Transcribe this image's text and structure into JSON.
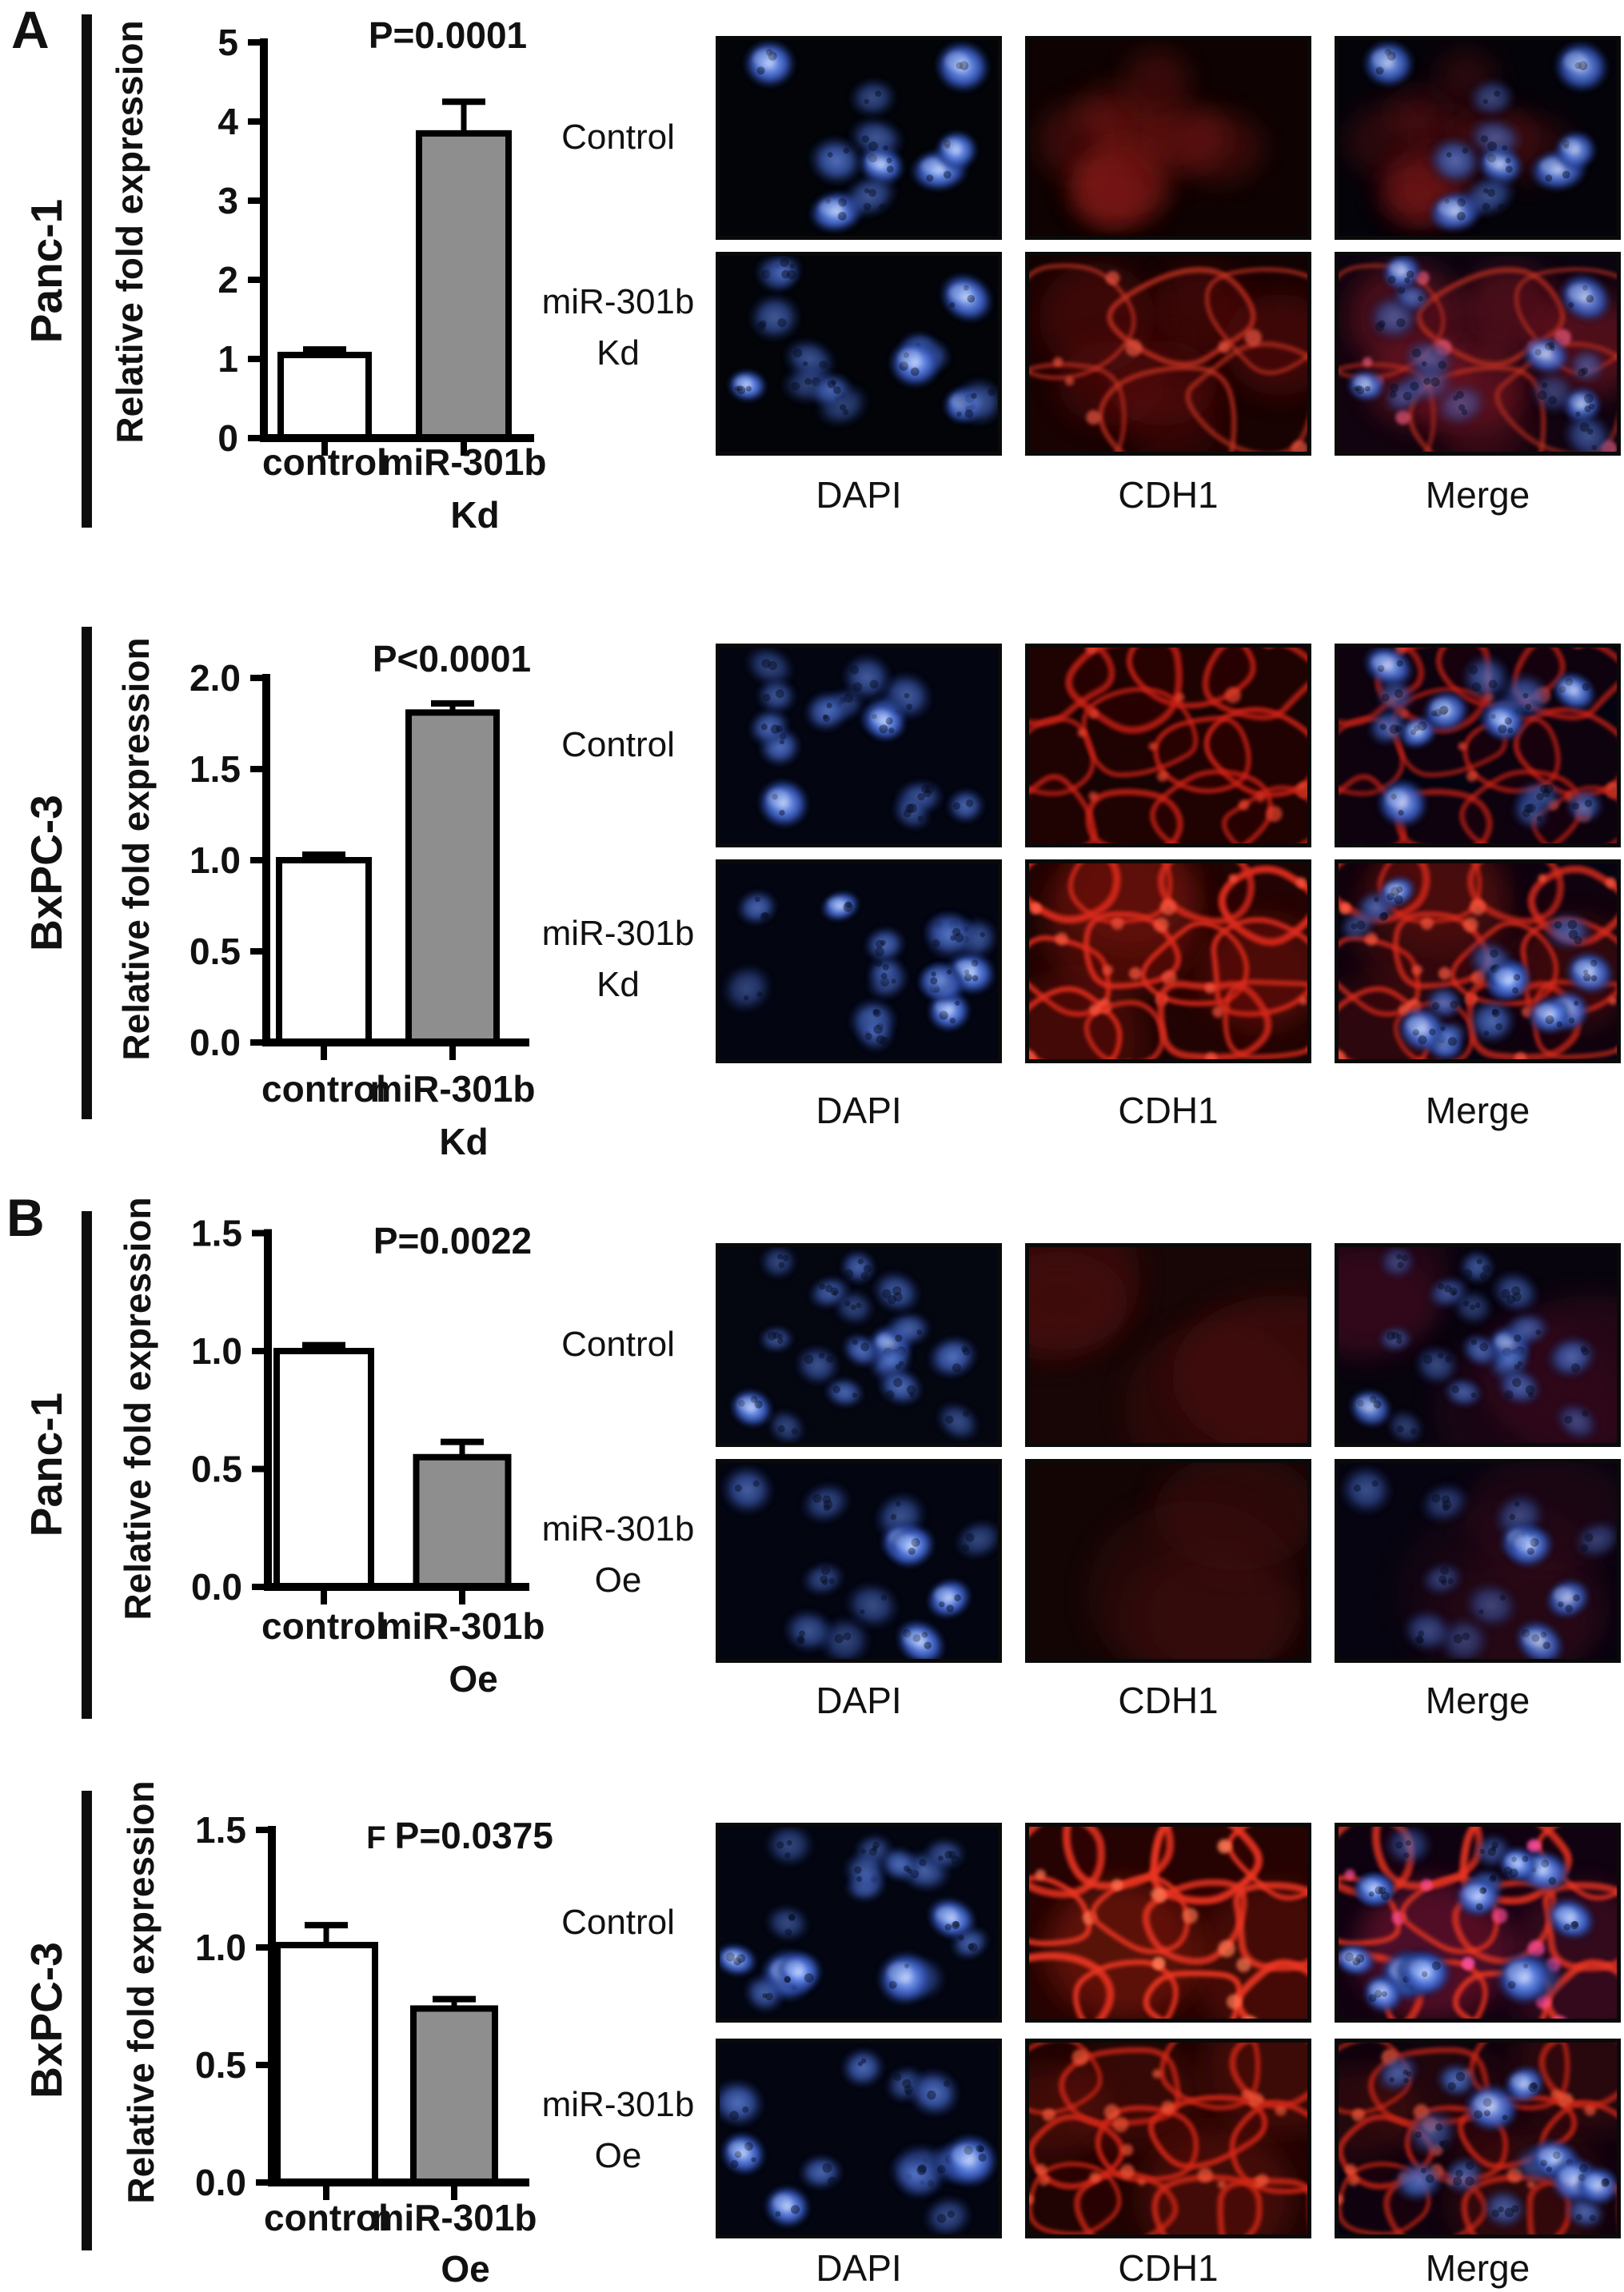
{
  "colors": {
    "bar_control_fill": "#ffffff",
    "bar_treated_fill": "#8e8e8e",
    "bar_stroke": "#000000",
    "annotation_bar": "#0d0d0d",
    "dapi_nuclei_blue": "#3f6ad8",
    "cdh1_red": "#d0261a"
  },
  "chart_data": [
    {
      "type": "bar",
      "panel": "A",
      "cell_line": "Panc-1",
      "p_prefix": "",
      "p_value": "P=0.0001",
      "ylabel": "Relative fold expression",
      "categories": [
        "control",
        "miR-301b Kd"
      ],
      "category_label_lines": [
        [
          "control"
        ],
        [
          "miR-301b",
          "Kd"
        ]
      ],
      "values": [
        1.05,
        3.85
      ],
      "errors_up": [
        0.07,
        0.4
      ],
      "ylim": [
        0,
        5
      ],
      "ytick_labels": [
        "5",
        "4",
        "3",
        "2",
        "1",
        "0"
      ],
      "grid": false,
      "legend": null,
      "bar_fills": [
        "#ffffff",
        "#8e8e8e"
      ]
    },
    {
      "type": "bar",
      "panel": "A",
      "cell_line": "BxPC-3",
      "p_prefix": "",
      "p_value": "P<0.0001",
      "ylabel": "Relative fold expression",
      "categories": [
        "control",
        "miR-301b Kd"
      ],
      "category_label_lines": [
        [
          "control"
        ],
        [
          "miR-301b",
          "Kd"
        ]
      ],
      "values": [
        1.0,
        1.81
      ],
      "errors_up": [
        0.03,
        0.05
      ],
      "ylim": [
        0,
        2
      ],
      "ytick_labels": [
        "2.0",
        "1.5",
        "1.0",
        "0.5",
        "0.0"
      ],
      "grid": false,
      "legend": null,
      "bar_fills": [
        "#ffffff",
        "#8e8e8e"
      ]
    },
    {
      "type": "bar",
      "panel": "B",
      "cell_line": "Panc-1",
      "p_prefix": "",
      "p_value": "P=0.0022",
      "ylabel": "Relative fold expression",
      "categories": [
        "control",
        "miR-301b Oe"
      ],
      "category_label_lines": [
        [
          "control"
        ],
        [
          "miR-301b",
          "Oe"
        ]
      ],
      "values": [
        1.0,
        0.55
      ],
      "errors_up": [
        0.025,
        0.065
      ],
      "ylim": [
        0,
        1.5
      ],
      "ytick_labels": [
        "1.5",
        "1.0",
        "0.5",
        "0.0"
      ],
      "grid": false,
      "legend": null,
      "bar_fills": [
        "#ffffff",
        "#8e8e8e"
      ]
    },
    {
      "type": "bar",
      "panel": "B",
      "cell_line": "BxPC-3",
      "p_prefix": "F",
      "p_value": "P=0.0375",
      "ylabel": "Relative fold expression",
      "categories": [
        "control",
        "miR-301b Oe"
      ],
      "category_label_lines": [
        [
          "control"
        ],
        [
          "miR-301b",
          "Oe"
        ]
      ],
      "values": [
        1.01,
        0.74
      ],
      "errors_up": [
        0.085,
        0.04
      ],
      "ylim": [
        0,
        1.5
      ],
      "ytick_labels": [
        "1.5",
        "1.0",
        "0.5",
        "0.0"
      ],
      "grid": false,
      "legend": null,
      "bar_fills": [
        "#ffffff",
        "#8e8e8e"
      ]
    }
  ],
  "sections": [
    {
      "panel_letter": "A",
      "cell_line": "Panc-1",
      "chart_index": 0,
      "microscopy": {
        "col_labels": [
          "DAPI",
          "CDH1",
          "Merge"
        ],
        "rows": [
          {
            "label_lines": [
              "Control",
              ""
            ],
            "cells": [
              "dapi-bright-cluster",
              "cdh1-faint-cluster",
              "merge-faint-cluster"
            ]
          },
          {
            "label_lines": [
              "miR-301b",
              "Kd"
            ],
            "cells": [
              "dapi-scatter",
              "cdh1-web",
              "merge-web"
            ]
          }
        ]
      }
    },
    {
      "panel_letter": "",
      "cell_line": "BxPC-3",
      "chart_index": 1,
      "microscopy": {
        "col_labels": [
          "DAPI",
          "CDH1",
          "Merge"
        ],
        "rows": [
          {
            "label_lines": [
              "Control",
              ""
            ],
            "cells": [
              "dapi-round-dim",
              "cdh1-mesh",
              "merge-mesh"
            ]
          },
          {
            "label_lines": [
              "miR-301b",
              "Kd"
            ],
            "cells": [
              "dapi-round-dim2",
              "cdh1-mesh-strong",
              "merge-mesh-strong"
            ]
          }
        ]
      }
    },
    {
      "panel_letter": "B",
      "cell_line": "Panc-1",
      "chart_index": 2,
      "microscopy": {
        "col_labels": [
          "DAPI",
          "CDH1",
          "Merge"
        ],
        "rows": [
          {
            "label_lines": [
              "Control",
              ""
            ],
            "cells": [
              "dapi-many-dim",
              "cdh1-dark",
              "merge-dark"
            ]
          },
          {
            "label_lines": [
              "miR-301b",
              "Oe"
            ],
            "cells": [
              "dapi-few-dim",
              "cdh1-dark2",
              "merge-dark2"
            ]
          }
        ]
      }
    },
    {
      "panel_letter": "",
      "cell_line": "BxPC-3",
      "chart_index": 3,
      "microscopy": {
        "col_labels": [
          "DAPI",
          "CDH1",
          "Merge"
        ],
        "rows": [
          {
            "label_lines": [
              "Control",
              ""
            ],
            "cells": [
              "dapi-many-round",
              "cdh1-mesh-bright",
              "merge-mesh-bright"
            ]
          },
          {
            "label_lines": [
              "miR-301b",
              "Oe"
            ],
            "cells": [
              "dapi-round-dim3",
              "cdh1-mesh2",
              "merge-mesh2"
            ]
          }
        ]
      }
    }
  ]
}
